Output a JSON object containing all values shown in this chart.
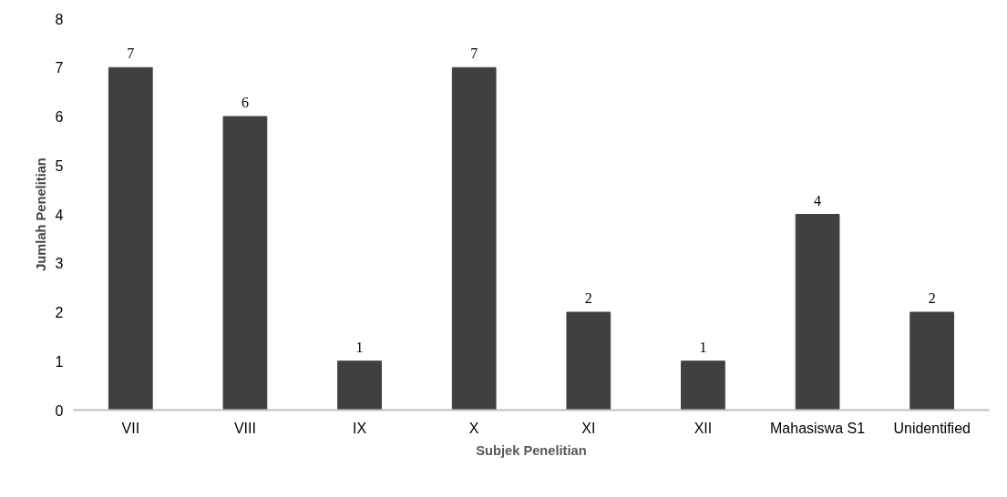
{
  "chart_data": {
    "type": "bar",
    "xlabel": "Subjek Penelitian",
    "ylabel": "Jumlah Penelitian",
    "categories": [
      "VII",
      "VIII",
      "IX",
      "X",
      "XI",
      "XII",
      "Mahasiswa S1",
      "Unidentified"
    ],
    "values": [
      7,
      6,
      1,
      7,
      2,
      1,
      4,
      2
    ],
    "color": "#404040",
    "ylim": [
      0,
      8
    ],
    "yticks": [
      0,
      1,
      2,
      3,
      4,
      5,
      6,
      7,
      8
    ],
    "grid": false,
    "data_labels": true
  }
}
